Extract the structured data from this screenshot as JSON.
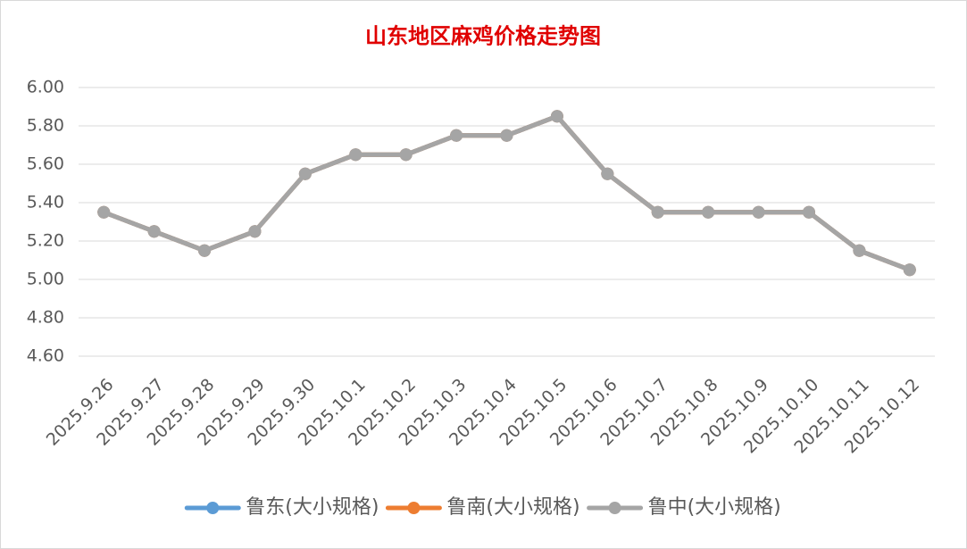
{
  "chart_data": {
    "type": "line",
    "title": "山东地区麻鸡价格走势图",
    "categories": [
      "2025.9.26",
      "2025.9.27",
      "2025.9.28",
      "2025.9.29",
      "2025.9.30",
      "2025.10.1",
      "2025.10.2",
      "2025.10.3",
      "2025.10.4",
      "2025.10.5",
      "2025.10.6",
      "2025.10.7",
      "2025.10.8",
      "2025.10.9",
      "2025.10.10",
      "2025.10.11",
      "2025.10.12"
    ],
    "series": [
      {
        "name": "鲁东(大小规格)",
        "color": "#5b9bd5",
        "values": [
          5.35,
          5.25,
          5.15,
          5.25,
          5.55,
          5.65,
          5.65,
          5.75,
          5.75,
          5.85,
          5.55,
          5.35,
          5.35,
          5.35,
          5.35,
          5.15,
          5.05
        ]
      },
      {
        "name": "鲁南(大小规格)",
        "color": "#ed7d31",
        "values": [
          5.35,
          5.25,
          5.15,
          5.25,
          5.55,
          5.65,
          5.65,
          5.75,
          5.75,
          5.85,
          5.55,
          5.35,
          5.35,
          5.35,
          5.35,
          5.15,
          5.05
        ]
      },
      {
        "name": "鲁中(大小规格)",
        "color": "#a5a5a5",
        "values": [
          5.35,
          5.25,
          5.15,
          5.25,
          5.55,
          5.65,
          5.65,
          5.75,
          5.75,
          5.85,
          5.55,
          5.35,
          5.35,
          5.35,
          5.35,
          5.15,
          5.05
        ]
      }
    ],
    "ylim": [
      4.6,
      6.0
    ],
    "yticks": [
      {
        "value": 4.6,
        "label": "4.60"
      },
      {
        "value": 4.8,
        "label": "4.80"
      },
      {
        "value": 5.0,
        "label": "5.00"
      },
      {
        "value": 5.2,
        "label": "5.20"
      },
      {
        "value": 5.4,
        "label": "5.40"
      },
      {
        "value": 5.6,
        "label": "5.60"
      },
      {
        "value": 5.8,
        "label": "5.80"
      },
      {
        "value": 6.0,
        "label": "6.00"
      }
    ],
    "grid": true,
    "legend": "bottom"
  }
}
